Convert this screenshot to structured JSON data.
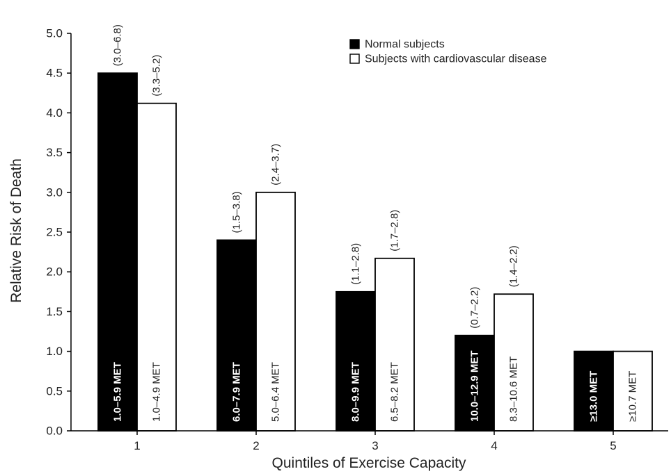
{
  "chart_data": {
    "type": "bar",
    "xlabel": "Quintiles of Exercise Capacity",
    "ylabel": "Relative Risk of Death",
    "ylim": [
      0,
      5.0
    ],
    "y_ticks": [
      "0.0",
      "0.5",
      "1.0",
      "1.5",
      "2.0",
      "2.5",
      "3.0",
      "3.5",
      "4.0",
      "4.5",
      "5.0"
    ],
    "categories": [
      "1",
      "2",
      "3",
      "4",
      "5"
    ],
    "grid": false,
    "legend_position": "top-right",
    "series": [
      {
        "name": "Normal subjects",
        "color": "#000000",
        "values": [
          4.5,
          2.4,
          1.75,
          1.2,
          1.0
        ],
        "ci_labels": [
          "(3.0–6.8)",
          "(1.5–3.8)",
          "(1.1–2.8)",
          "(0.7–2.2)",
          ""
        ],
        "bar_labels": [
          "1.0–5.9 MET",
          "6.0–7.9 MET",
          "8.0–9.9 MET",
          "10.0–12.9 MET",
          "≥13.0 MET"
        ]
      },
      {
        "name": "Subjects with cardiovascular disease",
        "color": "#ffffff",
        "values": [
          4.12,
          3.0,
          2.17,
          1.72,
          1.0
        ],
        "ci_labels": [
          "(3.3–5.2)",
          "(2.4–3.7)",
          "(1.7–2.8)",
          "(1.4–2.2)",
          ""
        ],
        "bar_labels": [
          "1.0–4.9 MET",
          "5.0–6.4 MET",
          "6.5–8.2 MET",
          "8.3–10.6 MET",
          "≥10.7 MET"
        ]
      }
    ]
  }
}
